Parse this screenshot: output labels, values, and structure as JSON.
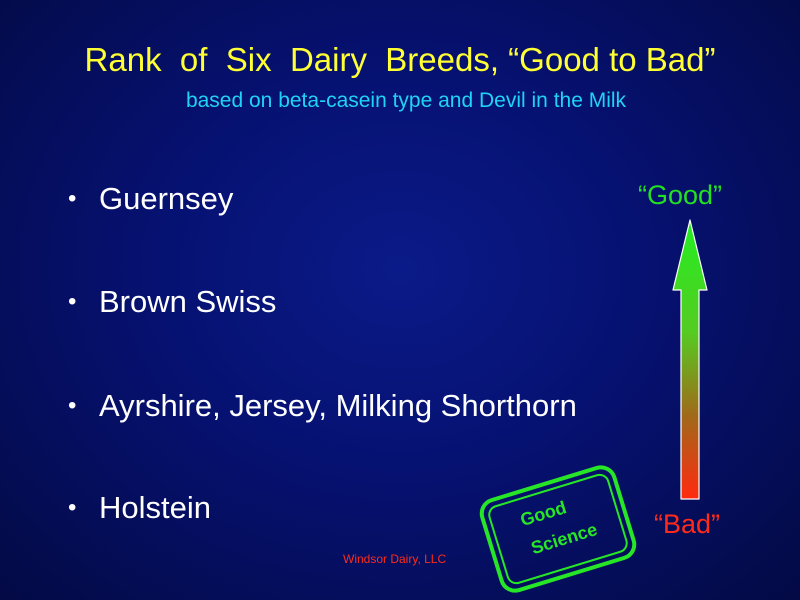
{
  "title": "Rank  of  Six  Dairy  Breeds, “Good to Bad”",
  "subtitle": "based on beta-casein type and Devil in the Milk",
  "bullet_symbol": "•",
  "bullets": [
    "Guernsey",
    "Brown Swiss",
    "Ayrshire, Jersey, Milking Shorthorn",
    "Holstein"
  ],
  "scale": {
    "top_label": "“Good”",
    "bottom_label": "“Bad”",
    "top_color": "#22e022",
    "bottom_color": "#ff2a1a"
  },
  "stamp": {
    "line1": "Good",
    "line2": "Science",
    "color": "#27e627"
  },
  "footer": "Windsor Dairy, LLC",
  "colors": {
    "background": "#061170",
    "title": "#ffff33",
    "subtitle": "#1fd3f4",
    "bullet_text": "#ffffff"
  }
}
